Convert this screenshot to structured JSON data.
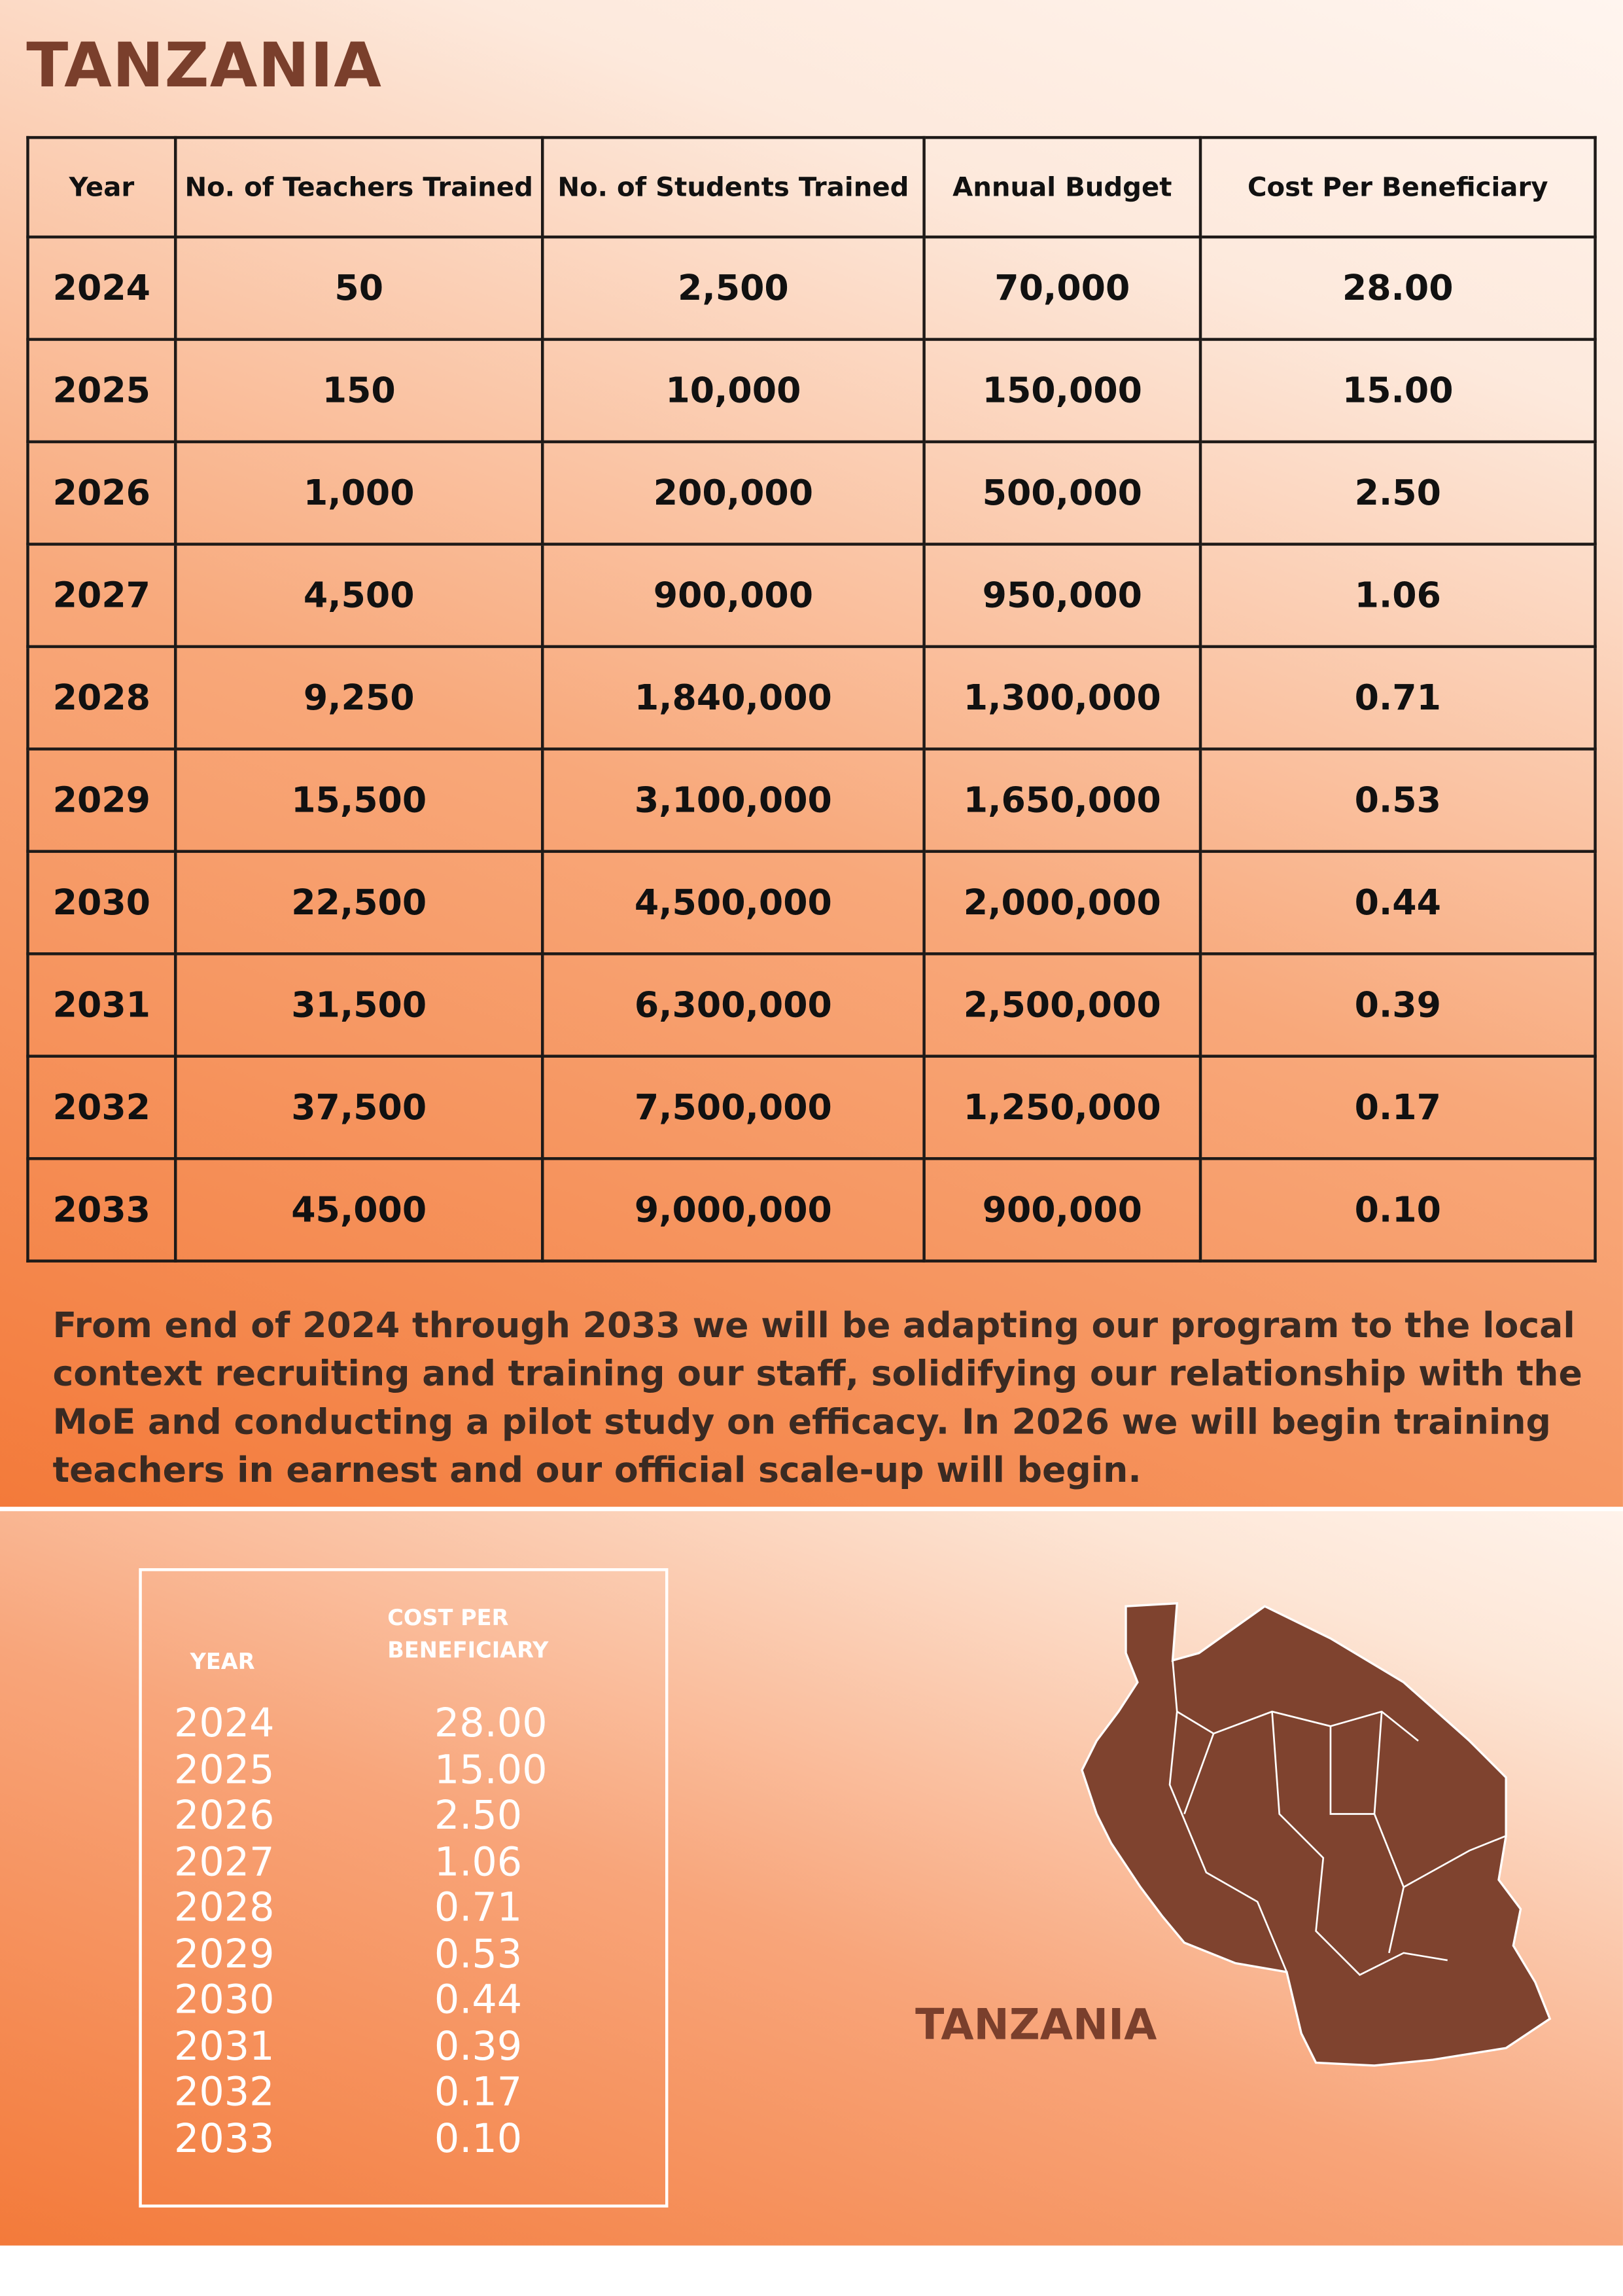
{
  "header": {
    "title": "TANZANIA"
  },
  "table": {
    "columns": [
      "Year",
      "No. of Teachers Trained",
      "No. of Students Trained",
      "Annual Budget",
      "Cost Per Beneficiary"
    ],
    "rows": [
      [
        "2024",
        "50",
        "2,500",
        "70,000",
        "28.00"
      ],
      [
        "2025",
        "150",
        "10,000",
        "150,000",
        "15.00"
      ],
      [
        "2026",
        "1,000",
        "200,000",
        "500,000",
        "2.50"
      ],
      [
        "2027",
        "4,500",
        "900,000",
        "950,000",
        "1.06"
      ],
      [
        "2028",
        "9,250",
        "1,840,000",
        "1,300,000",
        "0.71"
      ],
      [
        "2029",
        "15,500",
        "3,100,000",
        "1,650,000",
        "0.53"
      ],
      [
        "2030",
        "22,500",
        "4,500,000",
        "2,000,000",
        "0.44"
      ],
      [
        "2031",
        "31,500",
        "6,300,000",
        "2,500,000",
        "0.39"
      ],
      [
        "2032",
        "37,500",
        "7,500,000",
        "1,250,000",
        "0.17"
      ],
      [
        "2033",
        "45,000",
        "9,000,000",
        "900,000",
        "0.10"
      ]
    ]
  },
  "paragraph": "From end of 2024 through 2033 we will be adapting our program to the local context recruiting and training our staff, solidifying our relationship with the MoE and conducting a pilot study on efficacy. In 2026 we will begin training teachers in earnest and our official scale-up will begin.",
  "summary": {
    "year_header": "YEAR",
    "cost_header": "COST PER BENEFICIARY",
    "rows": [
      [
        "2024",
        "28.00"
      ],
      [
        "2025",
        "15.00"
      ],
      [
        "2026",
        "2.50"
      ],
      [
        "2027",
        "1.06"
      ],
      [
        "2028",
        "0.71"
      ],
      [
        "2029",
        "0.53"
      ],
      [
        "2030",
        "0.44"
      ],
      [
        "2031",
        "0.39"
      ],
      [
        "2032",
        "0.17"
      ],
      [
        "2033",
        "0.10"
      ]
    ]
  },
  "map": {
    "label": "TANZANIA"
  }
}
